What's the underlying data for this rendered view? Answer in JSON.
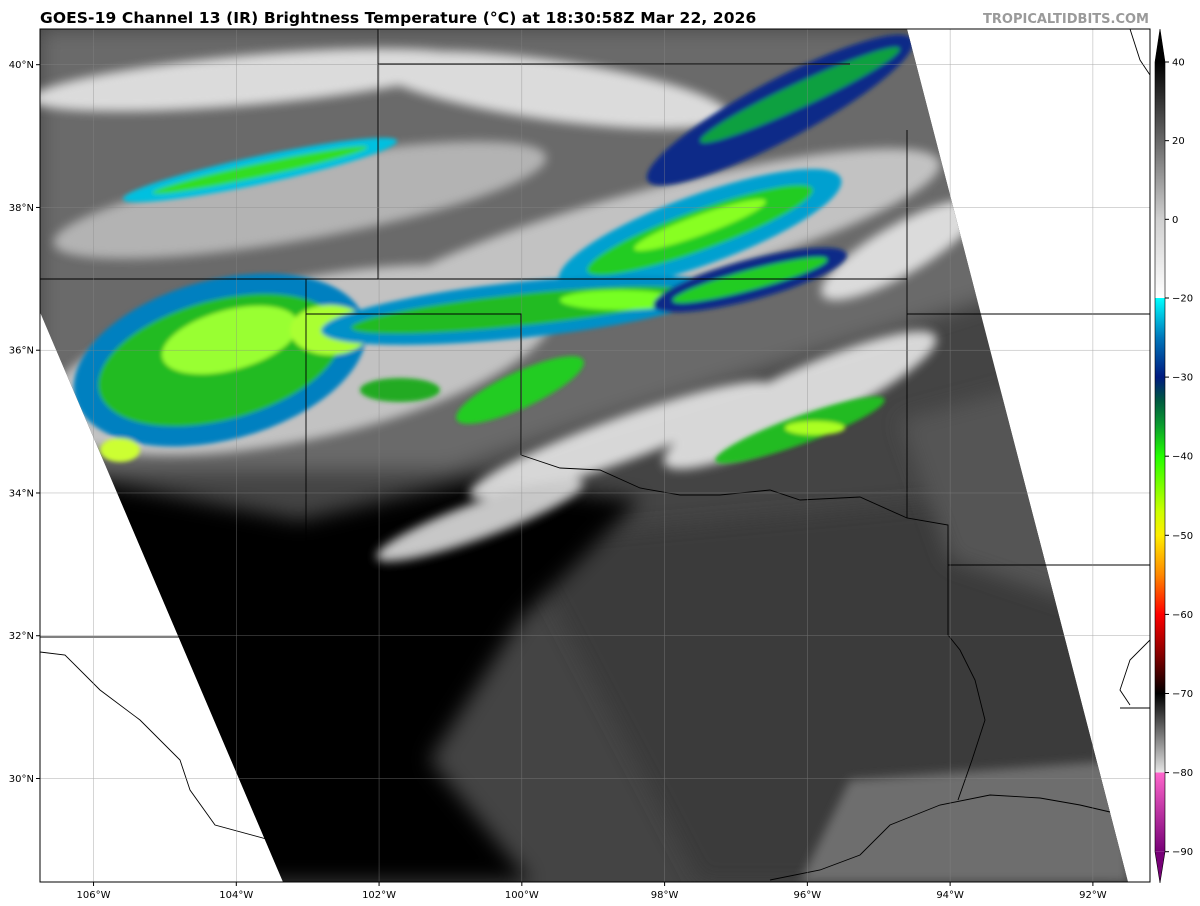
{
  "title": "GOES-19 Channel 13 (IR) Brightness Temperature (°C) at 18:30:58Z Mar 22, 2026",
  "watermark": "TROPICALTIDBITS.COM",
  "map": {
    "lon_ticks": [
      -106,
      -104,
      -102,
      -100,
      -98,
      -96,
      -94,
      -92
    ],
    "lon_labels": [
      "106°W",
      "104°W",
      "102°W",
      "100°W",
      "98°W",
      "96°W",
      "94°W",
      "92°W"
    ],
    "lat_ticks": [
      40,
      38,
      36,
      34,
      32,
      30
    ],
    "lat_labels": [
      "40°N",
      "38°N",
      "36°N",
      "34°N",
      "32°N",
      "30°N"
    ],
    "extent": {
      "lon": [
        -106.75,
        -91.2
      ],
      "lat": [
        28.55,
        40.5
      ]
    }
  },
  "colorbar": {
    "ticks": [
      40,
      20,
      0,
      -20,
      -30,
      -40,
      -50,
      -60,
      -70,
      -80,
      -90
    ],
    "labels": [
      "40",
      "20",
      "0",
      "−20",
      "−30",
      "−40",
      "−50",
      "−60",
      "−70",
      "−80",
      "−90"
    ],
    "stops": [
      {
        "v": 40,
        "c": "#000000"
      },
      {
        "v": 0,
        "c": "#d0d0d0"
      },
      {
        "v": -20,
        "c": "#ffffff"
      },
      {
        "v": -20.01,
        "c": "#00ffff"
      },
      {
        "v": -25,
        "c": "#0077bb"
      },
      {
        "v": -30,
        "c": "#001a80"
      },
      {
        "v": -33,
        "c": "#005a40"
      },
      {
        "v": -36,
        "c": "#0a9a30"
      },
      {
        "v": -40,
        "c": "#22ff00"
      },
      {
        "v": -47,
        "c": "#ccff00"
      },
      {
        "v": -50,
        "c": "#ffee00"
      },
      {
        "v": -55,
        "c": "#ff8800"
      },
      {
        "v": -60,
        "c": "#ff0000"
      },
      {
        "v": -65,
        "c": "#880000"
      },
      {
        "v": -70,
        "c": "#000000"
      },
      {
        "v": -79.99,
        "c": "#e6e6e6"
      },
      {
        "v": -80,
        "c": "#ff66cc"
      },
      {
        "v": -90,
        "c": "#770077"
      }
    ]
  }
}
